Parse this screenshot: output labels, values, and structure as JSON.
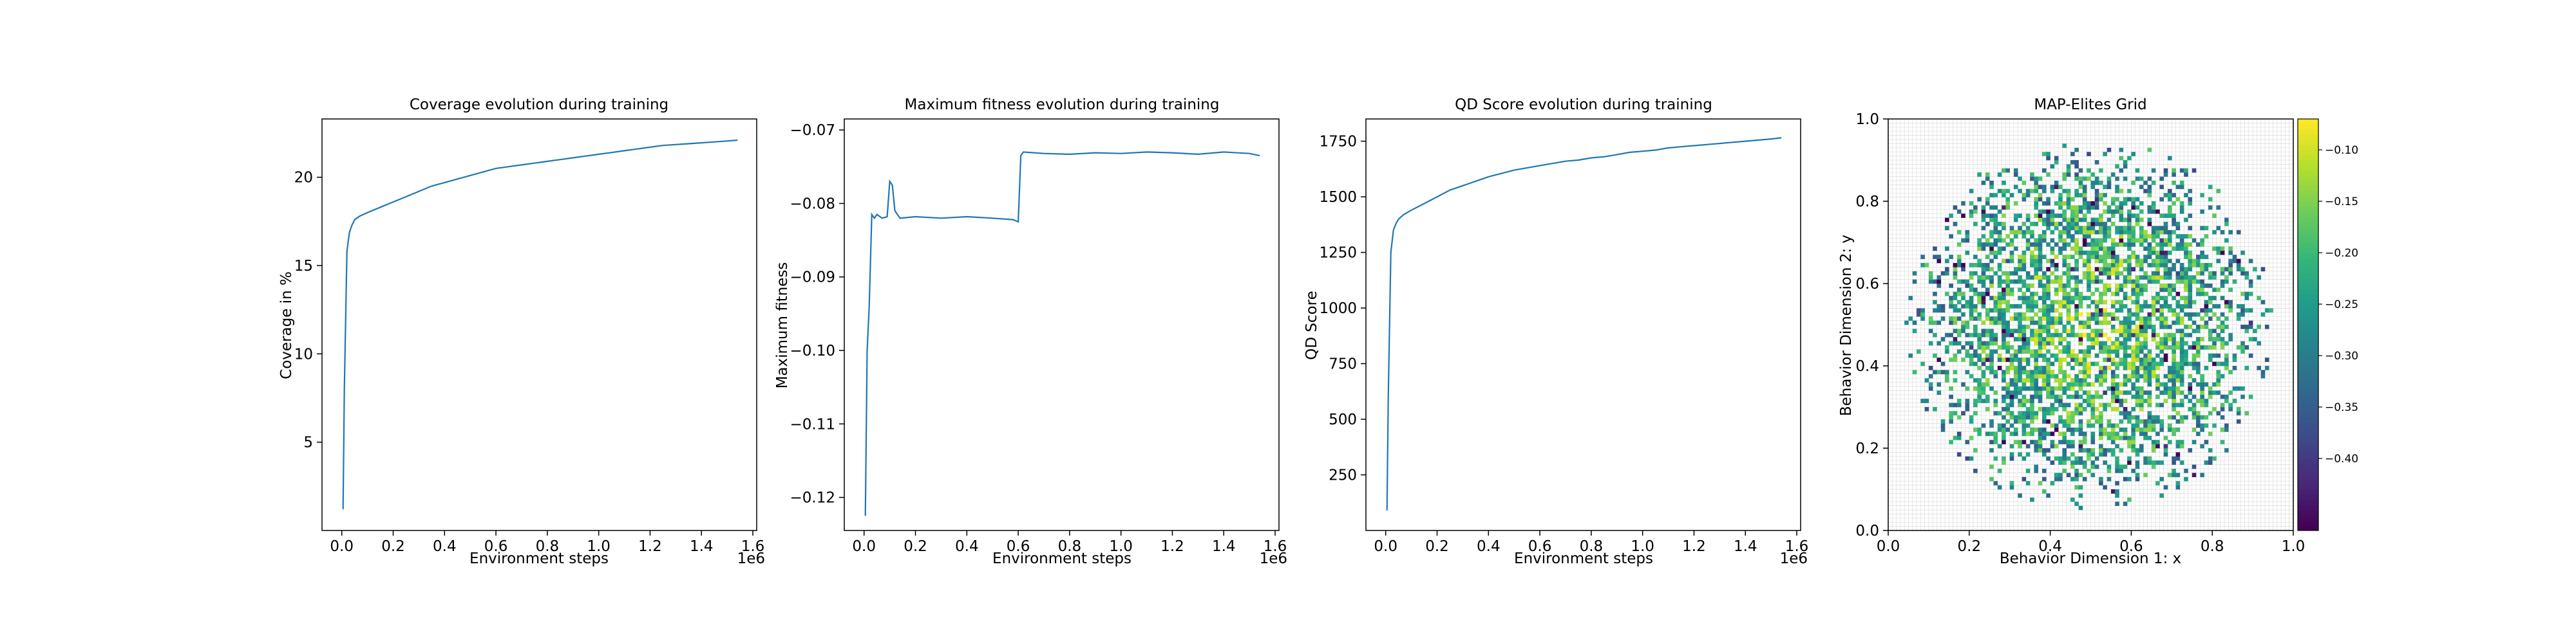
{
  "figure": {
    "background": "#ffffff"
  },
  "chart_data": [
    {
      "type": "line",
      "title": "Coverage evolution during training",
      "xlabel": "Environment steps",
      "ylabel": "Coverage in %",
      "x_offset_label": "1e6",
      "xlim": [
        -0.077,
        1.615
      ],
      "ylim": [
        -0.0,
        23.3
      ],
      "xticks": [
        0.0,
        0.2,
        0.4,
        0.6,
        0.8,
        1.0,
        1.2,
        1.4,
        1.6
      ],
      "xtick_labels": [
        "0.0",
        "0.2",
        "0.4",
        "0.6",
        "0.8",
        "1.0",
        "1.2",
        "1.4",
        "1.6"
      ],
      "yticks": [
        5,
        10,
        15,
        20
      ],
      "ytick_labels": [
        "5",
        "10",
        "15",
        "20"
      ],
      "color": "#1f77b4",
      "grid": false,
      "series": [
        {
          "x": [
            0.005,
            0.01,
            0.02,
            0.03,
            0.04,
            0.05,
            0.07,
            0.1,
            0.15,
            0.2,
            0.25,
            0.3,
            0.35,
            0.4,
            0.45,
            0.5,
            0.55,
            0.6,
            0.65,
            0.7,
            0.75,
            0.8,
            0.85,
            0.9,
            0.95,
            1.0,
            1.05,
            1.1,
            1.15,
            1.2,
            1.25,
            1.3,
            1.35,
            1.4,
            1.45,
            1.5,
            1.54
          ],
          "y": [
            1.2,
            8.0,
            15.8,
            16.9,
            17.3,
            17.6,
            17.8,
            18.0,
            18.3,
            18.6,
            18.9,
            19.2,
            19.5,
            19.7,
            19.9,
            20.1,
            20.3,
            20.5,
            20.6,
            20.7,
            20.8,
            20.9,
            21.0,
            21.1,
            21.2,
            21.3,
            21.4,
            21.5,
            21.6,
            21.7,
            21.8,
            21.85,
            21.9,
            21.95,
            22.0,
            22.05,
            22.1
          ]
        }
      ]
    },
    {
      "type": "line",
      "title": "Maximum fitness evolution during training",
      "xlabel": "Environment steps",
      "ylabel": "Maximum fitness",
      "x_offset_label": "1e6",
      "xlim": [
        -0.077,
        1.615
      ],
      "ylim": [
        -0.1245,
        -0.0685
      ],
      "xticks": [
        0.0,
        0.2,
        0.4,
        0.6,
        0.8,
        1.0,
        1.2,
        1.4,
        1.6
      ],
      "xtick_labels": [
        "0.0",
        "0.2",
        "0.4",
        "0.6",
        "0.8",
        "1.0",
        "1.2",
        "1.4",
        "1.6"
      ],
      "yticks": [
        -0.12,
        -0.11,
        -0.1,
        -0.09,
        -0.08,
        -0.07
      ],
      "ytick_labels": [
        "−0.12",
        "−0.11",
        "−0.10",
        "−0.09",
        "−0.08",
        "−0.07"
      ],
      "color": "#1f77b4",
      "grid": false,
      "series": [
        {
          "x": [
            0.005,
            0.012,
            0.02,
            0.03,
            0.04,
            0.05,
            0.07,
            0.09,
            0.1,
            0.11,
            0.12,
            0.13,
            0.14,
            0.2,
            0.3,
            0.4,
            0.5,
            0.58,
            0.6,
            0.61,
            0.62,
            0.7,
            0.8,
            0.9,
            1.0,
            1.1,
            1.2,
            1.3,
            1.4,
            1.5,
            1.54
          ],
          "y": [
            -0.1225,
            -0.1,
            -0.094,
            -0.0815,
            -0.082,
            -0.0815,
            -0.082,
            -0.0818,
            -0.077,
            -0.0775,
            -0.081,
            -0.0815,
            -0.082,
            -0.0818,
            -0.082,
            -0.0818,
            -0.082,
            -0.0822,
            -0.0825,
            -0.0735,
            -0.073,
            -0.0732,
            -0.0733,
            -0.0731,
            -0.0732,
            -0.073,
            -0.0731,
            -0.0733,
            -0.073,
            -0.0732,
            -0.0735
          ]
        }
      ]
    },
    {
      "type": "line",
      "title": "QD Score evolution during training",
      "xlabel": "Environment steps",
      "ylabel": "QD Score",
      "x_offset_label": "1e6",
      "xlim": [
        -0.077,
        1.615
      ],
      "ylim": [
        0,
        1850
      ],
      "xticks": [
        0.0,
        0.2,
        0.4,
        0.6,
        0.8,
        1.0,
        1.2,
        1.4,
        1.6
      ],
      "xtick_labels": [
        "0.0",
        "0.2",
        "0.4",
        "0.6",
        "0.8",
        "1.0",
        "1.2",
        "1.4",
        "1.6"
      ],
      "yticks": [
        250,
        500,
        750,
        1000,
        1250,
        1500,
        1750
      ],
      "ytick_labels": [
        "250",
        "500",
        "750",
        "1000",
        "1250",
        "1500",
        "1750"
      ],
      "color": "#1f77b4",
      "grid": false,
      "series": [
        {
          "x": [
            0.005,
            0.01,
            0.02,
            0.03,
            0.04,
            0.05,
            0.07,
            0.1,
            0.15,
            0.2,
            0.25,
            0.3,
            0.35,
            0.4,
            0.45,
            0.5,
            0.55,
            0.6,
            0.65,
            0.7,
            0.75,
            0.8,
            0.85,
            0.9,
            0.95,
            1.0,
            1.05,
            1.1,
            1.15,
            1.2,
            1.25,
            1.3,
            1.35,
            1.4,
            1.45,
            1.5,
            1.54
          ],
          "y": [
            90,
            600,
            1250,
            1350,
            1380,
            1400,
            1420,
            1440,
            1470,
            1500,
            1530,
            1550,
            1570,
            1590,
            1605,
            1620,
            1630,
            1640,
            1650,
            1660,
            1665,
            1675,
            1680,
            1690,
            1700,
            1705,
            1710,
            1720,
            1725,
            1730,
            1735,
            1740,
            1745,
            1750,
            1755,
            1760,
            1765
          ]
        }
      ]
    },
    {
      "type": "heatmap",
      "title": "MAP-Elites Grid",
      "xlabel": "Behavior Dimension 1: x",
      "ylabel": "Behavior Dimension 2: y",
      "xlim": [
        0.0,
        1.0
      ],
      "ylim": [
        0.0,
        1.0
      ],
      "xticks": [
        0.0,
        0.2,
        0.4,
        0.6,
        0.8,
        1.0
      ],
      "xtick_labels": [
        "0.0",
        "0.2",
        "0.4",
        "0.6",
        "0.8",
        "1.0"
      ],
      "yticks": [
        0.0,
        0.2,
        0.4,
        0.6,
        0.8,
        1.0
      ],
      "ytick_labels": [
        "0.0",
        "0.2",
        "0.4",
        "0.6",
        "0.8",
        "1.0"
      ],
      "grid_cells": 100,
      "grid": true,
      "colormap": "viridis",
      "value_range": [
        -0.47,
        -0.07
      ],
      "colorbar_ticks": [
        -0.4,
        -0.35,
        -0.3,
        -0.25,
        -0.2,
        -0.15,
        -0.1
      ],
      "colorbar_tick_labels": [
        "−0.40",
        "−0.35",
        "−0.30",
        "−0.25",
        "−0.20",
        "−0.15",
        "−0.10"
      ],
      "filled_region": {
        "center": [
          0.5,
          0.5
        ],
        "radius": 0.45
      }
    }
  ]
}
